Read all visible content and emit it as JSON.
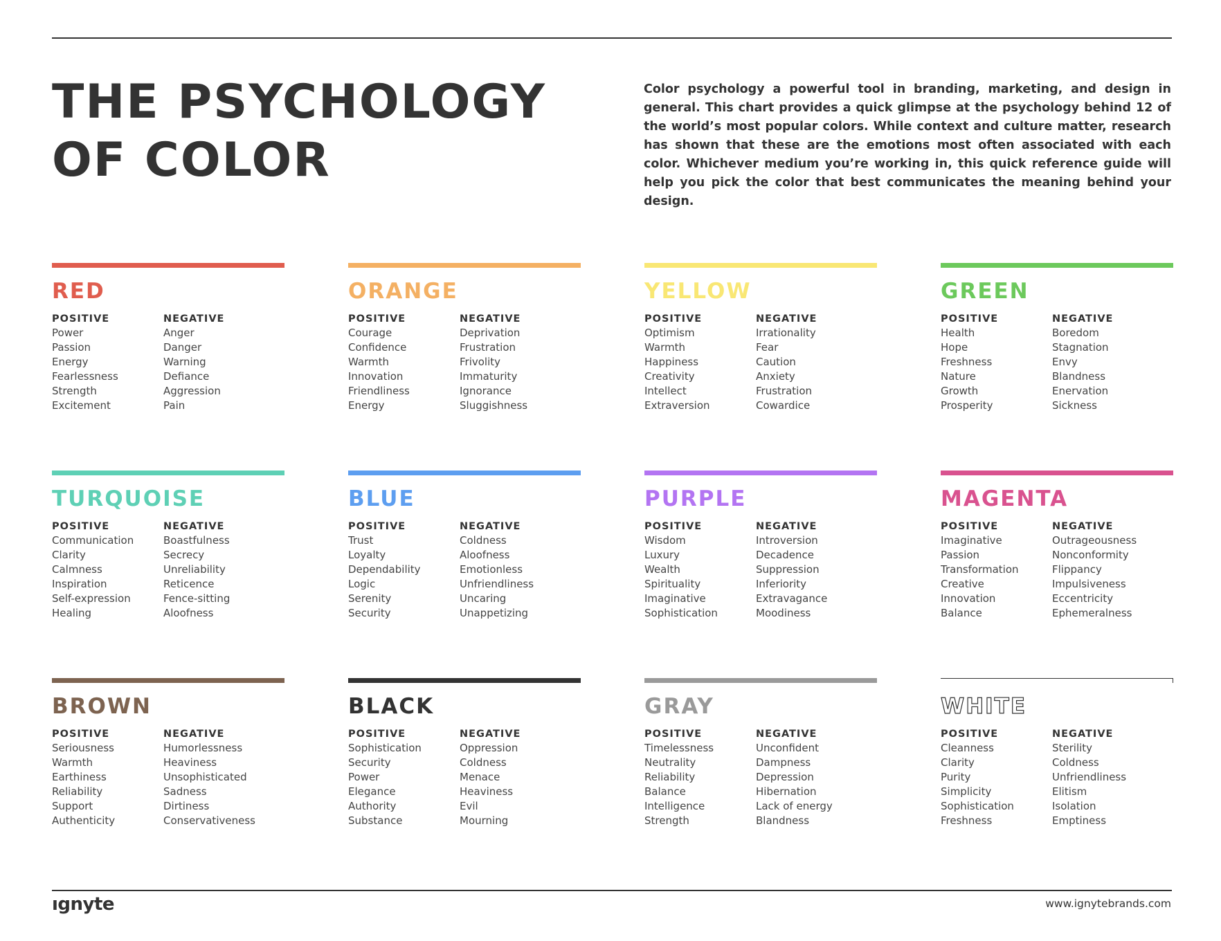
{
  "title_lines": [
    "THE PSYCHOLOGY",
    "OF COLOR"
  ],
  "intro": "Color psychology a powerful tool in branding, marketing, and design in general. This chart provides a quick glimpse at the psychology behind 12 of the world’s most popular colors. While context and culture matter, research has shown that these are the emotions most often associated with each color. Whichever medium you’re working in, this quick reference guide will help you pick the color that best communicates the meaning behind your design.",
  "labels": {
    "positive": "POSITIVE",
    "negative": "NEGATIVE"
  },
  "colors": [
    {
      "name": "RED",
      "hex": "#e05d4e",
      "positive": [
        "Power",
        "Passion",
        "Energy",
        "Fearlessness",
        "Strength",
        "Excitement"
      ],
      "negative": [
        "Anger",
        "Danger",
        "Warning",
        "Defiance",
        "Aggression",
        "Pain"
      ]
    },
    {
      "name": "ORANGE",
      "hex": "#f4b063",
      "positive": [
        "Courage",
        "Confidence",
        "Warmth",
        "Innovation",
        "Friendliness",
        "Energy"
      ],
      "negative": [
        "Deprivation",
        "Frustration",
        "Frivolity",
        "Immaturity",
        "Ignorance",
        "Sluggishness"
      ]
    },
    {
      "name": "YELLOW",
      "hex": "#f9e774",
      "positive": [
        "Optimism",
        "Warmth",
        "Happiness",
        "Creativity",
        "Intellect",
        "Extraversion"
      ],
      "negative": [
        "Irrationality",
        "Fear",
        "Caution",
        "Anxiety",
        "Frustration",
        "Cowardice"
      ]
    },
    {
      "name": "GREEN",
      "hex": "#6cc95c",
      "positive": [
        "Health",
        "Hope",
        "Freshness",
        "Nature",
        "Growth",
        "Prosperity"
      ],
      "negative": [
        "Boredom",
        "Stagnation",
        "Envy",
        "Blandness",
        "Enervation",
        "Sickness"
      ]
    },
    {
      "name": "TURQUOISE",
      "hex": "#5ed0b5",
      "positive": [
        "Communication",
        "Clarity",
        "Calmness",
        "Inspiration",
        "Self-expression",
        "Healing"
      ],
      "negative": [
        "Boastfulness",
        "Secrecy",
        "Unreliability",
        "Reticence",
        "Fence-sitting",
        "Aloofness"
      ]
    },
    {
      "name": "BLUE",
      "hex": "#5d9ef0",
      "positive": [
        "Trust",
        "Loyalty",
        "Dependability",
        "Logic",
        "Serenity",
        "Security"
      ],
      "negative": [
        "Coldness",
        "Aloofness",
        "Emotionless",
        "Unfriendliness",
        "Uncaring",
        "Unappetizing"
      ]
    },
    {
      "name": "PURPLE",
      "hex": "#b374f2",
      "positive": [
        "Wisdom",
        "Luxury",
        "Wealth",
        "Spirituality",
        "Imaginative",
        "Sophistication"
      ],
      "negative": [
        "Introversion",
        "Decadence",
        "Suppression",
        "Inferiority",
        "Extravagance",
        "Moodiness"
      ]
    },
    {
      "name": "MAGENTA",
      "hex": "#d9528f",
      "positive": [
        "Imaginative",
        "Passion",
        "Transformation",
        "Creative",
        "Innovation",
        "Balance"
      ],
      "negative": [
        "Outrageousness",
        "Nonconformity",
        "Flippancy",
        "Impulsiveness",
        "Eccentricity",
        "Ephemeralness"
      ]
    },
    {
      "name": "BROWN",
      "hex": "#7d6350",
      "positive": [
        "Seriousness",
        "Warmth",
        "Earthiness",
        "Reliability",
        "Support",
        "Authenticity"
      ],
      "negative": [
        "Humorlessness",
        "Heaviness",
        "Unsophisticated",
        "Sadness",
        "Dirtiness",
        "Conservativeness"
      ]
    },
    {
      "name": "BLACK",
      "hex": "#333333",
      "positive": [
        "Sophistication",
        "Security",
        "Power",
        "Elegance",
        "Authority",
        "Substance"
      ],
      "negative": [
        "Oppression",
        "Coldness",
        "Menace",
        "Heaviness",
        "Evil",
        "Mourning"
      ]
    },
    {
      "name": "GRAY",
      "hex": "#9a9a9a",
      "positive": [
        "Timelessness",
        "Neutrality",
        "Reliability",
        "Balance",
        "Intelligence",
        "Strength"
      ],
      "negative": [
        "Unconfident",
        "Dampness",
        "Depression",
        "Hibernation",
        "Lack of energy",
        "Blandness"
      ]
    },
    {
      "name": "WHITE",
      "hex": "#ffffff",
      "positive": [
        "Cleanness",
        "Clarity",
        "Purity",
        "Simplicity",
        "Sophistication",
        "Freshness"
      ],
      "negative": [
        "Sterility",
        "Coldness",
        "Unfriendliness",
        "Elitism",
        "Isolation",
        "Emptiness"
      ]
    }
  ],
  "footer": {
    "logo": "ıgnyte",
    "url": "www.ignytebrands.com"
  }
}
